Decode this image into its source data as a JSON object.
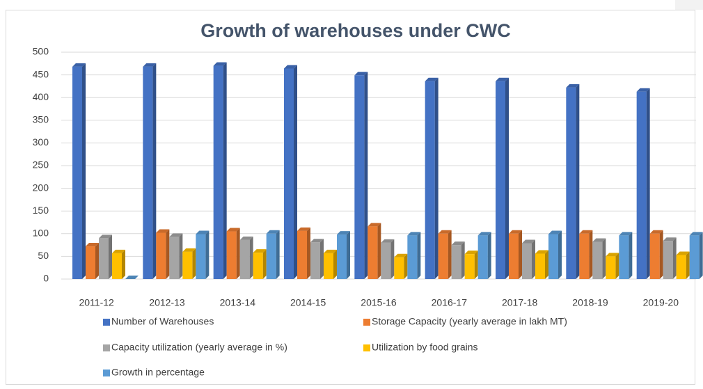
{
  "chart_data": {
    "type": "bar",
    "title": "Growth of warehouses under CWC",
    "categories": [
      "2011-12",
      "2012-13",
      "2013-14",
      "2014-15",
      "2015-16",
      "2016-17",
      "2017-18",
      "2018-19",
      "2019-20"
    ],
    "series": [
      {
        "name": "Number of Warehouses",
        "color": "#4472c4",
        "values": [
          468,
          468,
          470,
          464,
          449,
          436,
          436,
          422,
          413
        ]
      },
      {
        "name": "Storage Capacity (yearly average in lakh MT)",
        "color": "#ed7d31",
        "values": [
          72,
          102,
          105,
          106,
          116,
          100,
          100,
          100,
          100
        ]
      },
      {
        "name": "Capacity utilization (yearly average in %)",
        "color": "#a5a5a5",
        "values": [
          90,
          93,
          86,
          81,
          80,
          75,
          79,
          82,
          84
        ]
      },
      {
        "name": "Utilization by food grains",
        "color": "#ffc000",
        "values": [
          57,
          60,
          58,
          57,
          48,
          55,
          56,
          50,
          53
        ]
      },
      {
        "name": "Growth in percentage",
        "color": "#5b9bd5",
        "values": [
          0,
          99,
          100,
          98,
          96,
          96,
          99,
          96,
          96
        ]
      }
    ],
    "ylim": [
      0,
      500
    ],
    "yticks": [
      0,
      50,
      100,
      150,
      200,
      250,
      300,
      350,
      400,
      450,
      500
    ],
    "grid": true
  }
}
